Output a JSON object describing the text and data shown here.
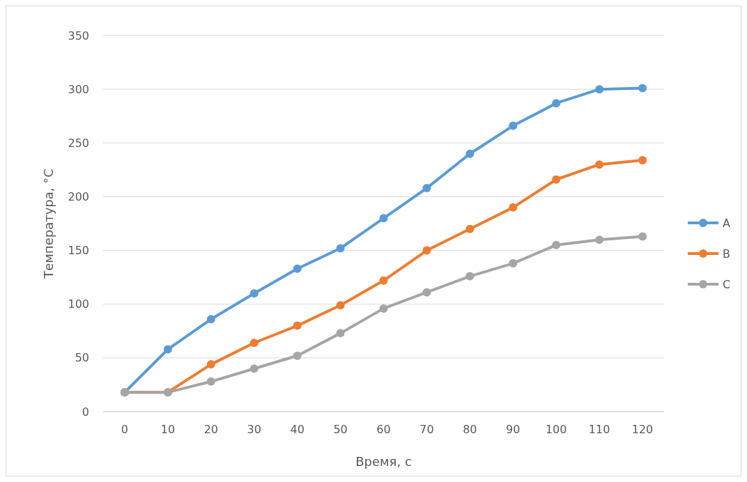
{
  "chart_data": {
    "type": "line",
    "xlabel": "Время, с",
    "ylabel": "Температура, °C",
    "categories": [
      "0",
      "10",
      "20",
      "30",
      "40",
      "50",
      "60",
      "70",
      "80",
      "90",
      "100",
      "110",
      "120"
    ],
    "series": [
      {
        "name": "A",
        "color": "#5b9bd5",
        "values": [
          18,
          58,
          86,
          110,
          133,
          152,
          180,
          208,
          240,
          266,
          287,
          300,
          301
        ]
      },
      {
        "name": "B",
        "color": "#ed7d31",
        "values": [
          18,
          18,
          44,
          64,
          80,
          99,
          122,
          150,
          170,
          190,
          216,
          230,
          234
        ]
      },
      {
        "name": "C",
        "color": "#a5a5a5",
        "values": [
          18,
          18,
          28,
          40,
          52,
          73,
          96,
          111,
          126,
          138,
          155,
          160,
          163
        ]
      }
    ],
    "ylim": [
      0,
      350
    ],
    "yticks": [
      0,
      50,
      100,
      150,
      200,
      250,
      300,
      350
    ],
    "grid": "y",
    "legend": "right",
    "marker": "circle",
    "line_style": "solid"
  }
}
